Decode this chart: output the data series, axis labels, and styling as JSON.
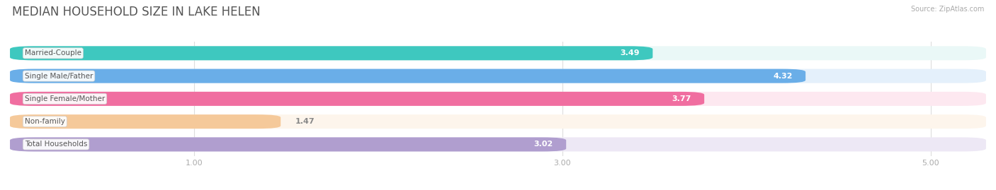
{
  "title": "MEDIAN HOUSEHOLD SIZE IN LAKE HELEN",
  "source": "Source: ZipAtlas.com",
  "categories": [
    "Married-Couple",
    "Single Male/Father",
    "Single Female/Mother",
    "Non-family",
    "Total Households"
  ],
  "values": [
    3.49,
    4.32,
    3.77,
    1.47,
    3.02
  ],
  "bar_colors": [
    "#3ec8bf",
    "#6aaee8",
    "#f06ea0",
    "#f5c99a",
    "#b09ecf"
  ],
  "bar_bg_colors": [
    "#eaf8f7",
    "#e4f0fb",
    "#fde8f0",
    "#fdf5ec",
    "#ede8f5"
  ],
  "value_white_threshold": 1.8,
  "value_label_color_white": "#ffffff",
  "value_label_color_dark": "#888888",
  "xlim": [
    0,
    5.3
  ],
  "xticks": [
    1.0,
    3.0,
    5.0
  ],
  "category_label_color": "#555555",
  "title_color": "#555555",
  "title_fontsize": 12,
  "bar_height": 0.62,
  "bar_gap": 0.38,
  "fig_bg_color": "#ffffff"
}
